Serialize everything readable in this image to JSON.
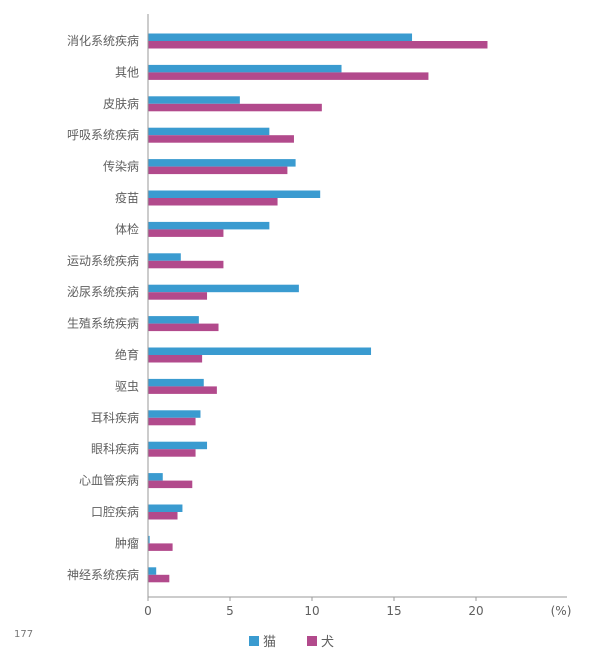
{
  "page_number": "177",
  "colors": {
    "cat": "#3a9bd0",
    "dog": "#b24a8c"
  },
  "chart_data": {
    "type": "bar",
    "orientation": "horizontal",
    "categories": [
      "消化系统疾病",
      "其他",
      "皮肤病",
      "呼吸系统疾病",
      "传染病",
      "疫苗",
      "体检",
      "运动系统疾病",
      "泌尿系统疾病",
      "生殖系统疾病",
      "绝育",
      "驱虫",
      "耳科疾病",
      "眼科疾病",
      "心血管疾病",
      "口腔疾病",
      "肿瘤",
      "神经系统疾病"
    ],
    "series": [
      {
        "name": "猫",
        "values": [
          16.1,
          11.8,
          5.6,
          7.4,
          9.0,
          10.5,
          7.4,
          2.0,
          9.2,
          3.1,
          13.6,
          3.4,
          3.2,
          3.6,
          0.9,
          2.1,
          0.1,
          0.5
        ]
      },
      {
        "name": "犬",
        "values": [
          20.7,
          17.1,
          10.6,
          8.9,
          8.5,
          7.9,
          4.6,
          4.6,
          3.6,
          4.3,
          3.3,
          4.2,
          2.9,
          2.9,
          2.7,
          1.8,
          1.5,
          1.3
        ]
      }
    ],
    "xlim": [
      0,
      25
    ],
    "xticks": [
      "0",
      "5",
      "10",
      "15",
      "20"
    ],
    "xunit": "(%)",
    "grid": false,
    "legend_position": "bottom"
  }
}
